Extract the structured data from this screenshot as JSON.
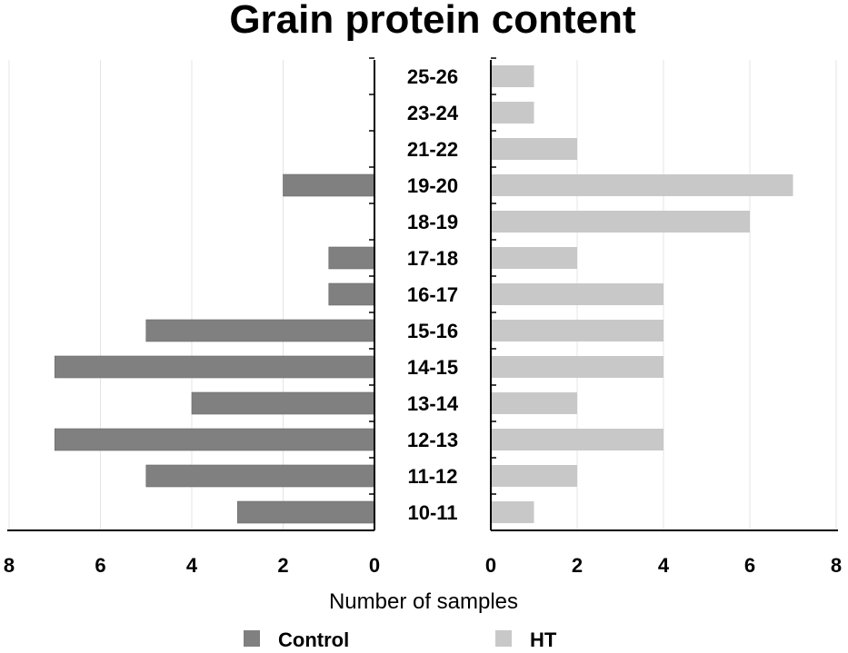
{
  "chart_data": {
    "type": "bar",
    "orientation": "horizontal-butterfly",
    "title": "Grain protein content",
    "xlabel": "Number of samples",
    "ylabel": "",
    "categories": [
      "10-11",
      "11-12",
      "12-13",
      "13-14",
      "14-15",
      "15-16",
      "16-17",
      "17-18",
      "18-19",
      "19-20",
      "21-22",
      "23-24",
      "25-26"
    ],
    "series": [
      {
        "name": "Control",
        "side": "left",
        "color": "#808080",
        "values": [
          3,
          5,
          7,
          4,
          7,
          5,
          1,
          1,
          0,
          2,
          0,
          0,
          0
        ]
      },
      {
        "name": "HT",
        "side": "right",
        "color": "#c8c8c8",
        "values": [
          1,
          2,
          4,
          2,
          4,
          4,
          4,
          2,
          6,
          7,
          2,
          1,
          1
        ]
      }
    ],
    "xlim": [
      0,
      8
    ],
    "xticks": [
      0,
      2,
      4,
      6,
      8
    ],
    "grid": true,
    "legend": "bottom"
  }
}
